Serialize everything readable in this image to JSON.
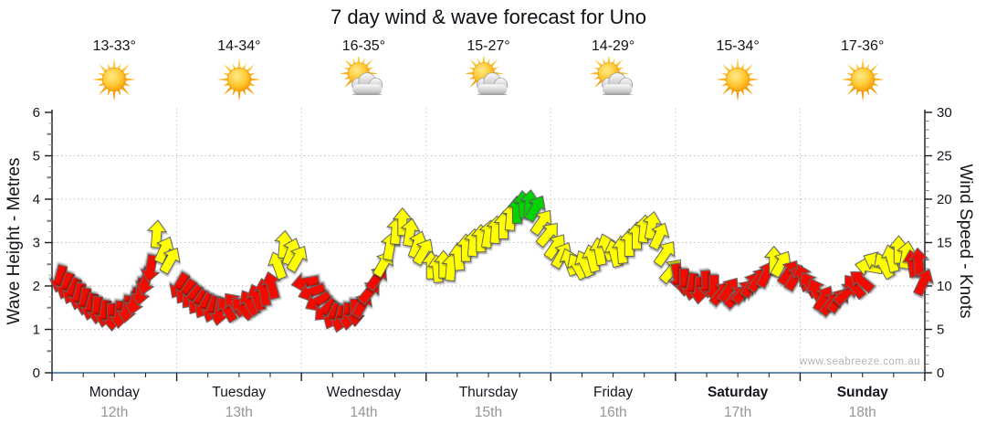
{
  "title": "7 day wind & wave forecast for Uno",
  "watermark": "www.seabreeze.com.au",
  "days": [
    {
      "name": "Monday",
      "date": "12th",
      "temp_range": "13-33°",
      "icon": "sun",
      "weekend": false
    },
    {
      "name": "Tuesday",
      "date": "13th",
      "temp_range": "14-34°",
      "icon": "sun",
      "weekend": false
    },
    {
      "name": "Wednesday",
      "date": "14th",
      "temp_range": "16-35°",
      "icon": "sun-cloud",
      "weekend": false
    },
    {
      "name": "Thursday",
      "date": "15th",
      "temp_range": "15-27°",
      "icon": "sun-cloud",
      "weekend": false
    },
    {
      "name": "Friday",
      "date": "16th",
      "temp_range": "14-29°",
      "icon": "sun-cloud",
      "weekend": false
    },
    {
      "name": "Saturday",
      "date": "17th",
      "temp_range": "15-34°",
      "icon": "sun",
      "weekend": true
    },
    {
      "name": "Sunday",
      "date": "18th",
      "temp_range": "17-36°",
      "icon": "sun",
      "weekend": true
    }
  ],
  "colors": {
    "axis_blue": "#33638f",
    "axis_dark": "#1a1a1a",
    "grid_gray": "#bdbdbd",
    "text_dark": "#15151f",
    "text_gray": "#969696",
    "watermark_gray": "#b4b4b4"
  },
  "chart_data": {
    "type": "wind_arrow_series",
    "title": "7 day wind & wave forecast for Uno",
    "x_axis": {
      "unit": "days",
      "range_days": [
        0,
        7
      ],
      "categories": [
        "Monday 12th",
        "Tuesday 13th",
        "Wednesday 14th",
        "Thursday 15th",
        "Friday 16th",
        "Saturday 17th",
        "Sunday 18th"
      ]
    },
    "y_left": {
      "label": "Wave Height - Metres",
      "min": 0,
      "max": 6,
      "ticks": [
        0,
        1,
        2,
        3,
        4,
        5,
        6
      ]
    },
    "y_right": {
      "label": "Wind Speed - Knots",
      "min": 0,
      "max": 30,
      "ticks": [
        0,
        5,
        10,
        15,
        20,
        25,
        30
      ]
    },
    "grid": {
      "h_dotted_at_metres": [
        1,
        2,
        3,
        4,
        5
      ],
      "v_dotted_at_day_boundaries": [
        1,
        2,
        3,
        4,
        5,
        6
      ]
    },
    "palette": {
      "red": "#ee1100",
      "yellow": "#ffff00",
      "green": "#00d300"
    },
    "arrow_columns": [
      "x_days",
      "wind_knots",
      "direction_deg_pointing",
      "color"
    ],
    "arrows": [
      [
        0.06,
        10.8,
        195,
        "red"
      ],
      [
        0.11,
        10.0,
        200,
        "red"
      ],
      [
        0.16,
        9.4,
        205,
        "red"
      ],
      [
        0.21,
        8.8,
        195,
        "red"
      ],
      [
        0.26,
        8.2,
        190,
        "red"
      ],
      [
        0.31,
        7.6,
        195,
        "red"
      ],
      [
        0.36,
        7.2,
        185,
        "red"
      ],
      [
        0.42,
        6.8,
        190,
        "red"
      ],
      [
        0.48,
        6.4,
        180,
        "red"
      ],
      [
        0.54,
        6.7,
        185,
        "red"
      ],
      [
        0.6,
        7.3,
        190,
        "red"
      ],
      [
        0.66,
        8.2,
        195,
        "red"
      ],
      [
        0.71,
        9.3,
        190,
        "red"
      ],
      [
        0.75,
        10.5,
        195,
        "red"
      ],
      [
        0.79,
        12.0,
        190,
        "red"
      ],
      [
        0.84,
        16.0,
        5,
        "yellow"
      ],
      [
        0.9,
        14.2,
        25,
        "yellow"
      ],
      [
        0.95,
        13.0,
        30,
        "yellow"
      ],
      [
        1.02,
        10.0,
        210,
        "red"
      ],
      [
        1.07,
        9.3,
        215,
        "red"
      ],
      [
        1.12,
        8.7,
        220,
        "red"
      ],
      [
        1.17,
        8.1,
        215,
        "red"
      ],
      [
        1.22,
        7.7,
        210,
        "red"
      ],
      [
        1.28,
        7.3,
        200,
        "red"
      ],
      [
        1.34,
        7.0,
        190,
        "red"
      ],
      [
        1.4,
        7.4,
        330,
        "red"
      ],
      [
        1.46,
        7.9,
        320,
        "red"
      ],
      [
        1.52,
        7.5,
        315,
        "red"
      ],
      [
        1.58,
        8.1,
        330,
        "red"
      ],
      [
        1.64,
        8.7,
        340,
        "red"
      ],
      [
        1.7,
        9.3,
        350,
        "red"
      ],
      [
        1.76,
        10.1,
        345,
        "red"
      ],
      [
        1.81,
        12.4,
        340,
        "yellow"
      ],
      [
        1.86,
        14.8,
        5,
        "yellow"
      ],
      [
        1.92,
        14.0,
        20,
        "yellow"
      ],
      [
        1.97,
        13.2,
        30,
        "yellow"
      ],
      [
        2.03,
        10.4,
        260,
        "red"
      ],
      [
        2.08,
        9.3,
        250,
        "red"
      ],
      [
        2.13,
        8.2,
        240,
        "red"
      ],
      [
        2.19,
        7.2,
        225,
        "red"
      ],
      [
        2.25,
        6.5,
        205,
        "red"
      ],
      [
        2.31,
        6.2,
        195,
        "red"
      ],
      [
        2.37,
        6.5,
        185,
        "red"
      ],
      [
        2.43,
        6.9,
        180,
        "red"
      ],
      [
        2.49,
        7.9,
        30,
        "red"
      ],
      [
        2.55,
        9.4,
        40,
        "red"
      ],
      [
        2.61,
        11.0,
        35,
        "red"
      ],
      [
        2.66,
        12.6,
        30,
        "yellow"
      ],
      [
        2.71,
        14.6,
        10,
        "yellow"
      ],
      [
        2.76,
        16.4,
        5,
        "yellow"
      ],
      [
        2.81,
        17.4,
        0,
        "yellow"
      ],
      [
        2.87,
        16.2,
        10,
        "yellow"
      ],
      [
        2.93,
        14.8,
        20,
        "yellow"
      ],
      [
        2.98,
        14.0,
        30,
        "yellow"
      ],
      [
        3.04,
        12.4,
        0,
        "yellow"
      ],
      [
        3.09,
        12.0,
        355,
        "yellow"
      ],
      [
        3.14,
        12.5,
        0,
        "yellow"
      ],
      [
        3.2,
        12.2,
        5,
        "yellow"
      ],
      [
        3.26,
        13.4,
        355,
        "yellow"
      ],
      [
        3.32,
        14.4,
        0,
        "yellow"
      ],
      [
        3.38,
        15.0,
        5,
        "yellow"
      ],
      [
        3.44,
        15.5,
        0,
        "yellow"
      ],
      [
        3.5,
        16.0,
        10,
        "yellow"
      ],
      [
        3.56,
        16.5,
        5,
        "yellow"
      ],
      [
        3.62,
        17.0,
        0,
        "yellow"
      ],
      [
        3.68,
        18.0,
        5,
        "yellow"
      ],
      [
        3.73,
        18.8,
        0,
        "green"
      ],
      [
        3.78,
        19.4,
        355,
        "green"
      ],
      [
        3.83,
        19.5,
        5,
        "green"
      ],
      [
        3.88,
        19.0,
        30,
        "green"
      ],
      [
        3.93,
        17.4,
        35,
        "yellow"
      ],
      [
        3.98,
        16.0,
        40,
        "yellow"
      ],
      [
        4.04,
        14.6,
        35,
        "yellow"
      ],
      [
        4.09,
        13.6,
        30,
        "yellow"
      ],
      [
        4.15,
        12.8,
        340,
        "yellow"
      ],
      [
        4.21,
        12.3,
        330,
        "yellow"
      ],
      [
        4.27,
        12.6,
        335,
        "yellow"
      ],
      [
        4.33,
        13.2,
        345,
        "yellow"
      ],
      [
        4.39,
        14.0,
        350,
        "yellow"
      ],
      [
        4.45,
        14.5,
        340,
        "yellow"
      ],
      [
        4.51,
        13.8,
        345,
        "yellow"
      ],
      [
        4.57,
        14.2,
        355,
        "yellow"
      ],
      [
        4.63,
        15.0,
        0,
        "yellow"
      ],
      [
        4.69,
        15.8,
        0,
        "yellow"
      ],
      [
        4.75,
        16.6,
        5,
        "yellow"
      ],
      [
        4.81,
        17.0,
        10,
        "yellow"
      ],
      [
        4.87,
        15.8,
        25,
        "yellow"
      ],
      [
        4.92,
        13.8,
        35,
        "yellow"
      ],
      [
        4.97,
        11.8,
        40,
        "yellow"
      ],
      [
        5.02,
        11.0,
        170,
        "red"
      ],
      [
        5.07,
        10.4,
        180,
        "red"
      ],
      [
        5.13,
        9.9,
        190,
        "red"
      ],
      [
        5.19,
        9.5,
        185,
        "red"
      ],
      [
        5.25,
        10.2,
        175,
        "red"
      ],
      [
        5.31,
        9.7,
        180,
        "red"
      ],
      [
        5.37,
        9.2,
        40,
        "red"
      ],
      [
        5.43,
        9.6,
        35,
        "red"
      ],
      [
        5.49,
        8.8,
        45,
        "red"
      ],
      [
        5.55,
        9.4,
        40,
        "red"
      ],
      [
        5.61,
        10.2,
        30,
        "red"
      ],
      [
        5.67,
        10.8,
        35,
        "red"
      ],
      [
        5.73,
        11.4,
        25,
        "red"
      ],
      [
        5.79,
        13.0,
        0,
        "yellow"
      ],
      [
        5.85,
        12.6,
        30,
        "yellow"
      ],
      [
        5.91,
        11.6,
        35,
        "red"
      ],
      [
        5.96,
        11.0,
        30,
        "red"
      ],
      [
        6.02,
        11.0,
        340,
        "red"
      ],
      [
        6.07,
        10.2,
        330,
        "red"
      ],
      [
        6.13,
        9.4,
        335,
        "red"
      ],
      [
        6.19,
        8.6,
        30,
        "red"
      ],
      [
        6.25,
        8.0,
        40,
        "red"
      ],
      [
        6.31,
        8.4,
        35,
        "red"
      ],
      [
        6.37,
        9.2,
        45,
        "red"
      ],
      [
        6.43,
        10.0,
        320,
        "red"
      ],
      [
        6.49,
        10.6,
        310,
        "red"
      ],
      [
        6.55,
        12.2,
        280,
        "yellow"
      ],
      [
        6.61,
        12.8,
        295,
        "yellow"
      ],
      [
        6.67,
        12.4,
        330,
        "yellow"
      ],
      [
        6.73,
        13.2,
        345,
        "yellow"
      ],
      [
        6.79,
        14.2,
        0,
        "yellow"
      ],
      [
        6.85,
        13.6,
        10,
        "yellow"
      ],
      [
        6.9,
        12.6,
        350,
        "red"
      ],
      [
        6.95,
        12.8,
        355,
        "red"
      ],
      [
        6.99,
        10.5,
        25,
        "red"
      ]
    ]
  }
}
